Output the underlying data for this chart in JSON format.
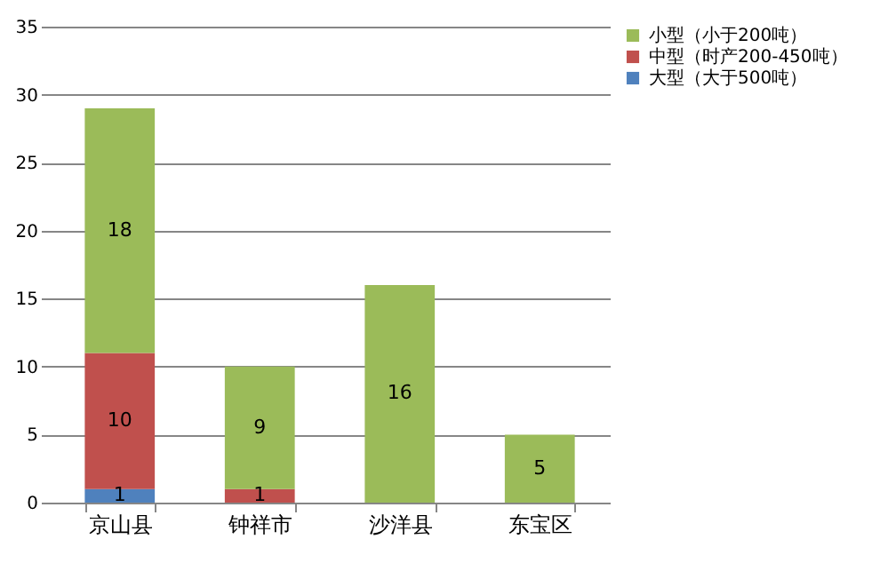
{
  "chart_data": {
    "type": "bar",
    "stacked": true,
    "categories": [
      "京山县",
      "钟祥市",
      "沙洋县",
      "东宝区"
    ],
    "series": [
      {
        "name": "大型（大于500吨）",
        "color": "#4f81bd",
        "values": [
          1,
          null,
          null,
          null
        ]
      },
      {
        "name": "中型（时产200-450吨）",
        "color": "#c0504d",
        "values": [
          10,
          1,
          null,
          null
        ]
      },
      {
        "name": "小型（小于200吨）",
        "color": "#9bbb59",
        "values": [
          18,
          9,
          16,
          5
        ]
      }
    ],
    "ylim": [
      0,
      35
    ],
    "yticks": [
      0,
      5,
      10,
      15,
      20,
      25,
      30,
      35
    ],
    "grid": "y",
    "legend": "right",
    "data_labels": true
  }
}
